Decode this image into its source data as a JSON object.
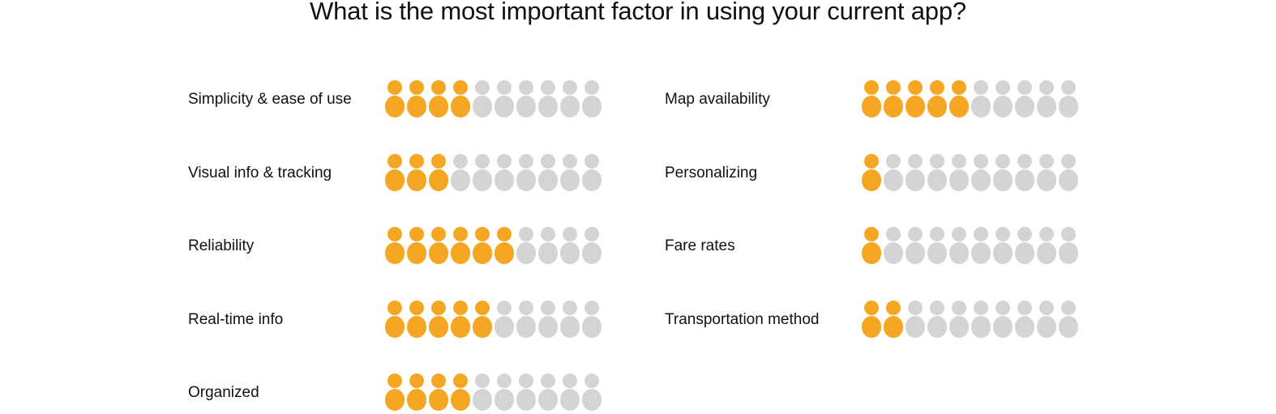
{
  "page": {
    "title": "What is the most important factor in using your current app?"
  },
  "colors": {
    "filled": "#F5A623",
    "empty": "#D4D4D4"
  },
  "icon": "person-icon",
  "chart_data": {
    "type": "pictograph",
    "title": "What is the most important factor in using your current app?",
    "units_per_row": 10,
    "categories": [
      "Simplicity & ease of use",
      "Visual info & tracking",
      "Reliability",
      "Real-time info",
      "Organized",
      "Map availability",
      "Personalizing",
      "Fare rates",
      "Transportation method"
    ],
    "values": [
      4,
      3,
      6,
      5,
      4,
      5,
      1,
      1,
      2
    ],
    "max": 10
  }
}
